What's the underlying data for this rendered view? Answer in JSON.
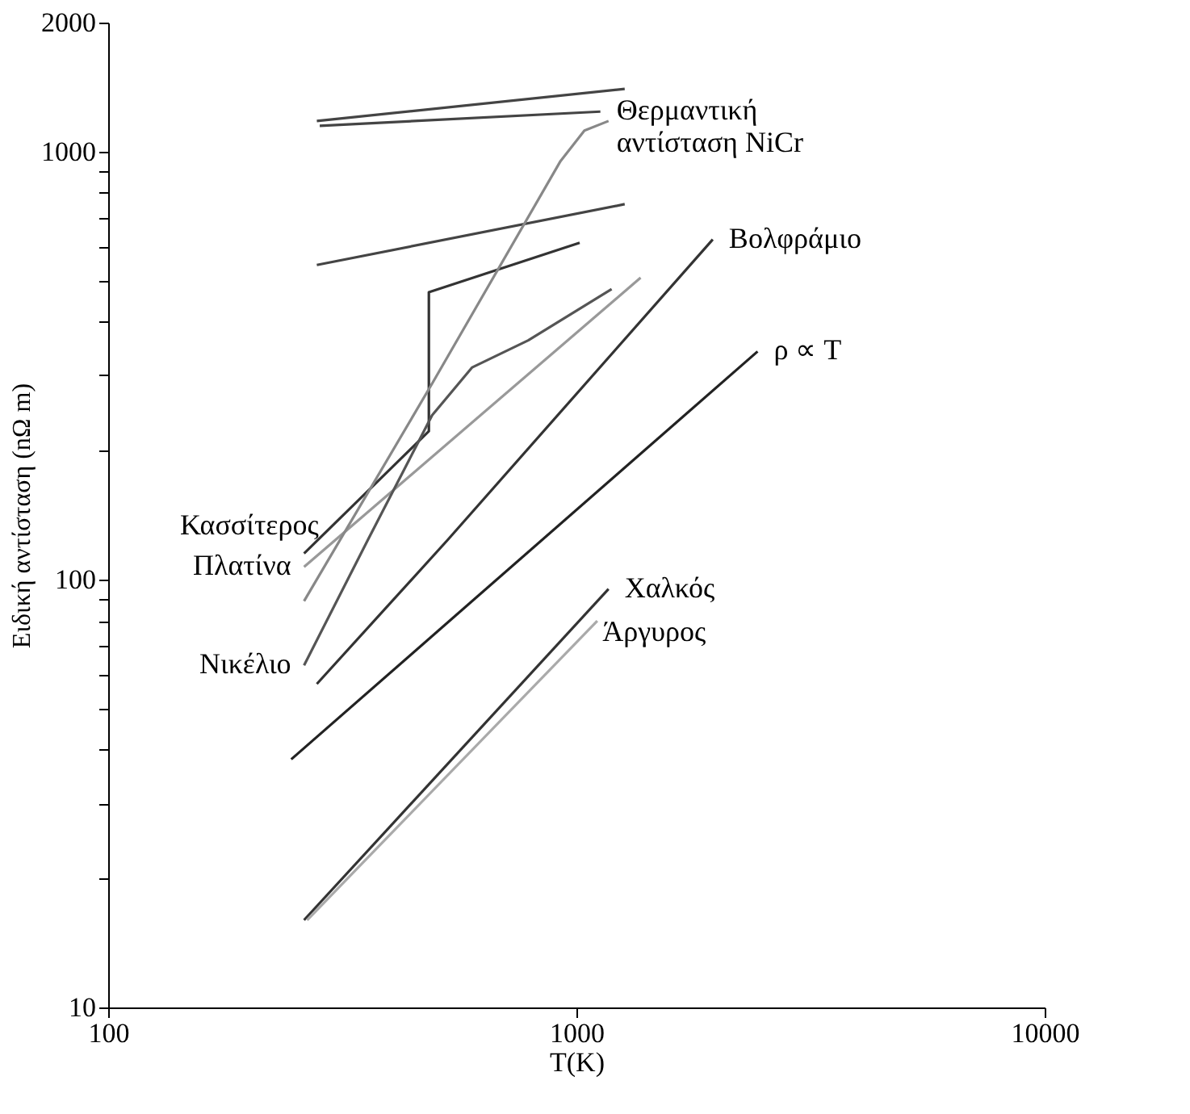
{
  "chart_data": {
    "type": "line",
    "xlabel": "T(K)",
    "ylabel": "Ειδική αντίσταση (nΩ m)",
    "log": "xy",
    "grid": false,
    "legend": false,
    "marker": "none",
    "line_style": "solid",
    "xlim": [
      100,
      10000
    ],
    "xticks": [
      100,
      1000,
      10000
    ],
    "ylim": [
      10,
      2000
    ],
    "yticks": [
      10,
      {
        "value": 20,
        "label": null
      },
      {
        "value": 30,
        "label": null
      },
      {
        "value": 40,
        "label": null
      },
      {
        "value": 50,
        "label": null
      },
      {
        "value": 60,
        "label": null
      },
      {
        "value": 70,
        "label": null
      },
      {
        "value": 80,
        "label": null
      },
      {
        "value": 90,
        "label": null
      },
      100,
      {
        "value": 200,
        "label": null
      },
      {
        "value": 300,
        "label": null
      },
      {
        "value": 400,
        "label": null
      },
      {
        "value": 500,
        "label": null
      },
      {
        "value": 600,
        "label": null
      },
      {
        "value": 700,
        "label": null
      },
      {
        "value": 800,
        "label": null
      },
      {
        "value": 900,
        "label": null
      },
      1000,
      2000
    ],
    "series": [
      {
        "color": "#444444",
        "x": [
          279,
          1268
        ],
        "values": [
          1178,
          1400
        ]
      },
      {
        "color": "#444444",
        "x": [
          283,
          1125
        ],
        "values": [
          1148,
          1239
        ]
      },
      {
        "color": "#444444",
        "x": [
          279,
          1268
        ],
        "values": [
          543,
          753
        ]
      },
      {
        "color": "#333333",
        "x": [
          262,
          484,
          484,
          1016
        ],
        "values": [
          115,
          222,
          469,
          612
        ]
      },
      {
        "color": "#999999",
        "x": [
          262,
          1371
        ],
        "values": [
          107,
          507
        ]
      },
      {
        "color": "#888888",
        "x": [
          262,
          492,
          925,
          1040,
          1171
        ],
        "values": [
          89,
          287,
          950,
          1119,
          1178
        ]
      },
      {
        "color": "#555555",
        "x": [
          262,
          359,
          492,
          599,
          789,
          1189
        ],
        "values": [
          63,
          124,
          242,
          313,
          362,
          477
        ]
      },
      {
        "color": "#333333",
        "x": [
          279,
          532,
          1955
        ],
        "values": [
          57,
          124,
          623
        ]
      },
      {
        "color": "#222222",
        "x": [
          246,
          2437
        ],
        "values": [
          38,
          341
        ]
      },
      {
        "color": "#333333",
        "x": [
          262,
          1171
        ],
        "values": [
          16,
          95
        ]
      },
      {
        "color": "#aaaaaa",
        "x": [
          266,
          1108
        ],
        "values": [
          16,
          80
        ]
      }
    ],
    "annotations": [
      {
        "text": "Θερμαντική\nαντίσταση NiCr",
        "x": 1125,
        "y": 1239
      },
      {
        "text": "Βολφράμιο",
        "x": 1955,
        "y": 623
      },
      {
        "text": "ρ ∝ T",
        "x": 2437,
        "y": 341
      },
      {
        "text": "Κασσίτερος",
        "x": 300,
        "y": 133
      },
      {
        "text": "Πλατίνα",
        "x": 262,
        "y": 107
      },
      {
        "text": "Νικέλιο",
        "x": 262,
        "y": 63
      },
      {
        "text": "Χαλκός",
        "x": 1171,
        "y": 95
      },
      {
        "text": "Άργυρος",
        "x": 1050,
        "y": 75
      }
    ]
  }
}
